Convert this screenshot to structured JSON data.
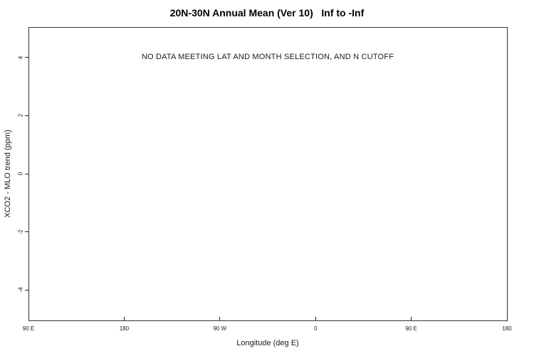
{
  "chart_data": {
    "type": "scatter",
    "title": "20N-30N Annual Mean (Ver 10)   Inf to -Inf",
    "xlabel": "Longitude (deg E)",
    "ylabel": "XCO2 - MLO trend (ppm)",
    "x_tick_labels": [
      "90 E",
      "180",
      "90 W",
      "0",
      "90 E",
      "180"
    ],
    "y_tick_values": [
      4,
      2,
      0,
      -2,
      -4
    ],
    "y_tick_labels": [
      "4",
      "2",
      "0",
      "-2",
      "-4"
    ],
    "ylim": [
      -5.05,
      5.05
    ],
    "series": [],
    "no_data_message": "NO DATA MEETING LAT AND MONTH SELECTION, AND N CUTOFF",
    "grid": false,
    "legend": "none",
    "tick_style": {
      "x_ticks": "inward",
      "y_ticks": "outward"
    }
  }
}
